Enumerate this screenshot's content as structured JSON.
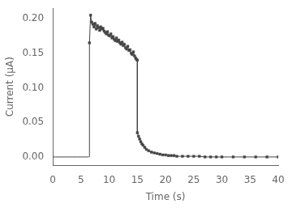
{
  "chart_data": {
    "type": "line",
    "xlabel": "Time (s)",
    "ylabel": "Current (μA)",
    "xlim": [
      0,
      40
    ],
    "ylim": [
      -0.012,
      0.215
    ],
    "xticks": [
      0,
      5,
      10,
      15,
      20,
      25,
      30,
      35,
      40
    ],
    "yticks": [
      {
        "value": 0.0,
        "label": "0.00"
      },
      {
        "value": 0.05,
        "label": "0.05"
      },
      {
        "value": 0.1,
        "label": "0.10"
      },
      {
        "value": 0.15,
        "label": "0.15"
      },
      {
        "value": 0.2,
        "label": "0.20"
      }
    ],
    "grid": false,
    "series": [
      {
        "x": [
          0.0,
          0.5,
          1.0,
          1.5,
          2.0,
          2.5,
          3.0,
          3.5,
          4.0,
          4.5,
          5.0,
          5.5,
          6.0,
          6.4
        ],
        "values": [
          0.0,
          0.0,
          0.0,
          0.0,
          0.0,
          0.0,
          0.0,
          0.0,
          0.0,
          0.0,
          0.0,
          0.0,
          0.0,
          0.0
        ],
        "color": "#444444",
        "marker": "none"
      },
      {
        "x": [
          6.5,
          6.5
        ],
        "values": [
          0.0,
          0.165
        ],
        "color": "#444444",
        "marker": "none"
      },
      {
        "x": [
          6.5,
          6.7,
          6.9,
          7.1,
          7.3,
          7.5,
          7.7,
          7.9,
          8.1,
          8.3,
          8.5,
          8.7,
          8.9,
          9.1,
          9.3,
          9.5,
          9.7,
          9.9,
          10.1,
          10.3,
          10.5,
          10.7,
          10.9,
          11.1,
          11.3,
          11.5,
          11.7,
          11.9,
          12.1,
          12.3,
          12.5,
          12.7,
          12.9,
          13.1,
          13.3,
          13.5,
          13.7,
          13.9,
          14.1,
          14.3,
          14.5,
          14.7,
          14.85,
          15.0
        ],
        "values": [
          0.165,
          0.205,
          0.195,
          0.192,
          0.188,
          0.193,
          0.185,
          0.19,
          0.187,
          0.183,
          0.188,
          0.185,
          0.186,
          0.182,
          0.18,
          0.178,
          0.181,
          0.176,
          0.175,
          0.178,
          0.172,
          0.174,
          0.17,
          0.168,
          0.172,
          0.167,
          0.169,
          0.165,
          0.163,
          0.166,
          0.161,
          0.163,
          0.158,
          0.156,
          0.16,
          0.154,
          0.155,
          0.15,
          0.148,
          0.152,
          0.146,
          0.143,
          0.141,
          0.14
        ],
        "color": "#444444",
        "marker": "square"
      },
      {
        "x": [
          15.0,
          15.0
        ],
        "values": [
          0.14,
          0.035
        ],
        "color": "#444444",
        "marker": "none"
      },
      {
        "x": [
          15.0,
          15.2,
          15.4,
          15.6,
          15.8,
          16.0,
          16.3,
          16.6,
          17.0,
          17.5,
          18.0,
          18.5,
          19.0,
          19.5,
          20.0,
          20.5,
          21.0,
          21.5,
          22.0,
          23.0,
          24.0,
          25.0,
          26.0,
          27.0,
          28.0,
          29.0,
          30.0,
          32.0,
          34.0,
          36.0,
          38.0,
          40.0
        ],
        "values": [
          0.035,
          0.03,
          0.026,
          0.022,
          0.019,
          0.017,
          0.014,
          0.011,
          0.009,
          0.007,
          0.006,
          0.005,
          0.004,
          0.003,
          0.003,
          0.002,
          0.002,
          0.002,
          0.001,
          0.001,
          0.001,
          0.001,
          0.001,
          0.0,
          0.0,
          0.0,
          0.0,
          0.0,
          0.0,
          0.0,
          0.0,
          0.0
        ],
        "color": "#444444",
        "marker": "square"
      }
    ]
  }
}
